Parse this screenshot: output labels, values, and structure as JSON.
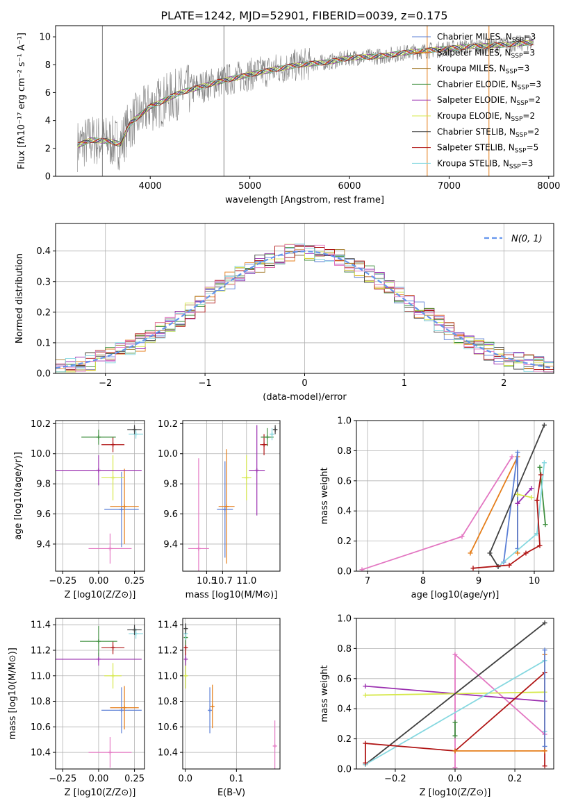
{
  "figure_title": "PLATE=1242, MJD=52901, FIBERID=0039, z=0.175",
  "colors": {
    "chabrier_miles": "#5b7fd6",
    "salpeter_miles": "#e57e1a",
    "kroupa_miles": "#a37a2a",
    "chabrier_elodie": "#3f8f3f",
    "salpeter_elodie": "#9b30b0",
    "kroupa_elodie": "#d6e84a",
    "chabrier_stelib": "#404040",
    "salpeter_stelib": "#b01515",
    "kroupa_stelib": "#86d8e0",
    "pink": "#e377c2",
    "data": "#7f7f7f"
  },
  "chart_data": [
    {
      "id": "spectrum",
      "type": "line",
      "xlabel": "wavelength [Angstrom, rest frame]",
      "ylabel": "Flux [fλ10⁻¹⁷ erg cm⁻² s⁻¹ A⁻¹]",
      "xlim": [
        3050,
        8050
      ],
      "ylim": [
        0,
        10.8
      ],
      "xticks": [
        4000,
        5000,
        6000,
        7000,
        8000
      ],
      "yticks": [
        0,
        2,
        4,
        6,
        8,
        10
      ],
      "legend": [
        {
          "label": "Chabrier MILES, N",
          "sub": "SSP",
          "suffix": "=3",
          "color": "#5b7fd6"
        },
        {
          "label": "Salpeter MILES, N",
          "sub": "SSP",
          "suffix": "=3",
          "color": "#e57e1a"
        },
        {
          "label": "Kroupa MILES, N",
          "sub": "SSP",
          "suffix": "=3",
          "color": "#a37a2a"
        },
        {
          "label": "Chabrier ELODIE, N",
          "sub": "SSP",
          "suffix": "=3",
          "color": "#3f8f3f"
        },
        {
          "label": "Salpeter ELODIE, N",
          "sub": "SSP",
          "suffix": "=2",
          "color": "#9b30b0"
        },
        {
          "label": "Kroupa ELODIE, N",
          "sub": "SSP",
          "suffix": "=2",
          "color": "#d6e84a"
        },
        {
          "label": "Chabrier STELIB, N",
          "sub": "SSP",
          "suffix": "=2",
          "color": "#404040"
        },
        {
          "label": "Salpeter STELIB, N",
          "sub": "SSP",
          "suffix": "=5",
          "color": "#b01515"
        },
        {
          "label": "Kroupa STELIB, N",
          "sub": "SSP",
          "suffix": "=3",
          "color": "#86d8e0"
        }
      ],
      "model_curve": {
        "x": [
          3270,
          3400,
          3600,
          3700,
          3800,
          3900,
          4000,
          4100,
          4300,
          4500,
          4700,
          5000,
          5200,
          5500,
          5800,
          6000,
          6300,
          6600,
          6900,
          7200,
          7500,
          7850
        ],
        "y": [
          2.2,
          2.6,
          2.5,
          2.3,
          3.8,
          4.4,
          5.0,
          5.3,
          6.0,
          6.4,
          6.8,
          7.3,
          7.6,
          8.0,
          8.2,
          8.5,
          8.6,
          8.9,
          9.1,
          9.3,
          9.4,
          9.6
        ]
      },
      "spikes": [
        {
          "x": 3520,
          "color": "#7f7f7f"
        },
        {
          "x": 4740,
          "color": "#7f7f7f"
        },
        {
          "x": 6780,
          "color": "#e57e1a"
        },
        {
          "x": 7400,
          "color": "#e57e1a"
        }
      ]
    },
    {
      "id": "residual-histogram",
      "type": "histogram",
      "xlabel": "(data-model)/error",
      "ylabel": "Normed distribution",
      "xlim": [
        -2.5,
        2.5
      ],
      "ylim": [
        0,
        0.49
      ],
      "xticks": [
        -2,
        -1,
        0,
        1,
        2
      ],
      "yticks": [
        0.0,
        0.1,
        0.2,
        0.3,
        0.4
      ],
      "bin_width": 0.1,
      "gaussian_label": "N(0, 1)"
    },
    {
      "id": "age-vs-Z",
      "type": "scatter",
      "xlabel": "Z [log10(Z/Z⊙)]",
      "ylabel": "age [log10(age/yr)]",
      "xlim": [
        -0.3,
        0.32
      ],
      "ylim": [
        9.22,
        10.22
      ],
      "xticks": [
        -0.25,
        0.0,
        0.25
      ],
      "yticks": [
        9.4,
        9.6,
        9.8,
        10.0,
        10.2
      ],
      "points": [
        {
          "x": 0.08,
          "y": 9.37,
          "xerr": 0.15,
          "yerr": 0.1,
          "color": "#e377c2"
        },
        {
          "x": 0.16,
          "y": 9.63,
          "xerr": 0.12,
          "yerr": 0.25,
          "color": "#5b7fd6"
        },
        {
          "x": 0.18,
          "y": 9.65,
          "xerr": 0.1,
          "yerr": 0.25,
          "color": "#e57e1a"
        },
        {
          "x": 0.1,
          "y": 9.84,
          "xerr": 0.08,
          "yerr": 0.15,
          "color": "#d6e84a"
        },
        {
          "x": 0.0,
          "y": 9.89,
          "xerr": 0.3,
          "yerr": 0.1,
          "color": "#9b30b0"
        },
        {
          "x": 0.1,
          "y": 10.06,
          "xerr": 0.08,
          "yerr": 0.05,
          "color": "#b01515"
        },
        {
          "x": 0.0,
          "y": 10.11,
          "xerr": 0.12,
          "yerr": 0.05,
          "color": "#3f8f3f"
        },
        {
          "x": 0.26,
          "y": 10.13,
          "xerr": 0.05,
          "yerr": 0.03,
          "color": "#86d8e0"
        },
        {
          "x": 0.25,
          "y": 10.16,
          "xerr": 0.05,
          "yerr": 0.03,
          "color": "#404040"
        }
      ]
    },
    {
      "id": "age-vs-mass",
      "type": "scatter",
      "xlabel": "mass [log10(M/M⊙)]",
      "ylabel": "",
      "xlim": [
        10.2,
        11.42
      ],
      "ylim": [
        9.22,
        10.22
      ],
      "xticks": [
        10.5,
        10.7,
        11.0
      ],
      "xticklabels": [
        "10.5",
        "10.7",
        "11.0"
      ],
      "yticks": [
        9.4,
        9.6,
        9.8,
        10.0,
        10.2
      ],
      "points": [
        {
          "x": 10.4,
          "y": 9.37,
          "xerr": 0.13,
          "yerr": 0.6,
          "color": "#e377c2"
        },
        {
          "x": 10.73,
          "y": 9.63,
          "xerr": 0.1,
          "yerr": 0.32,
          "color": "#5b7fd6"
        },
        {
          "x": 10.75,
          "y": 9.65,
          "xerr": 0.1,
          "yerr": 0.38,
          "color": "#e57e1a"
        },
        {
          "x": 11.0,
          "y": 9.84,
          "xerr": 0.06,
          "yerr": 0.15,
          "color": "#d6e84a"
        },
        {
          "x": 11.13,
          "y": 9.89,
          "xerr": 0.1,
          "yerr": 0.3,
          "color": "#9b30b0"
        },
        {
          "x": 11.22,
          "y": 10.06,
          "xerr": 0.05,
          "yerr": 0.07,
          "color": "#b01515"
        },
        {
          "x": 11.26,
          "y": 10.11,
          "xerr": 0.08,
          "yerr": 0.06,
          "color": "#3f8f3f"
        },
        {
          "x": 11.32,
          "y": 10.13,
          "xerr": 0.03,
          "yerr": 0.04,
          "color": "#86d8e0"
        },
        {
          "x": 11.36,
          "y": 10.16,
          "xerr": 0.03,
          "yerr": 0.03,
          "color": "#404040"
        }
      ]
    },
    {
      "id": "massweight-vs-age",
      "type": "line",
      "xlabel": "age [log10(age/yr)]",
      "ylabel": "mass weight",
      "xlim": [
        6.8,
        10.35
      ],
      "ylim": [
        0,
        1.0
      ],
      "xticks": [
        7,
        8,
        9,
        10
      ],
      "yticks": [
        0.0,
        0.2,
        0.4,
        0.6,
        0.8,
        1.0
      ],
      "series": [
        {
          "color": "#e377c2",
          "x": [
            6.9,
            8.7,
            9.6
          ],
          "y": [
            0.01,
            0.23,
            0.76
          ]
        },
        {
          "color": "#e57e1a",
          "x": [
            8.85,
            9.7,
            9.7
          ],
          "y": [
            0.12,
            0.76,
            0.12
          ]
        },
        {
          "color": "#5b7fd6",
          "x": [
            9.45,
            9.7,
            9.7
          ],
          "y": [
            0.06,
            0.79,
            0.15
          ]
        },
        {
          "color": "#9b30b0",
          "x": [
            9.7,
            9.95
          ],
          "y": [
            0.45,
            0.55
          ]
        },
        {
          "color": "#d6e84a",
          "x": [
            9.7,
            9.95
          ],
          "y": [
            0.51,
            0.49
          ]
        },
        {
          "color": "#3f8f3f",
          "x": [
            10.1,
            10.2
          ],
          "y": [
            0.69,
            0.31
          ]
        },
        {
          "color": "#86d8e0",
          "x": [
            9.35,
            10.05,
            10.18
          ],
          "y": [
            0.03,
            0.25,
            0.72
          ]
        },
        {
          "color": "#404040",
          "x": [
            9.35,
            9.2,
            10.18
          ],
          "y": [
            0.03,
            0.12,
            0.97
          ]
        },
        {
          "color": "#b01515",
          "x": [
            8.9,
            9.55,
            9.85,
            10.1,
            10.05,
            10.12
          ],
          "y": [
            0.02,
            0.04,
            0.12,
            0.17,
            0.47,
            0.64
          ]
        }
      ]
    },
    {
      "id": "mass-vs-Z",
      "type": "scatter",
      "xlabel": "Z [log10(Z/Z⊙)]",
      "ylabel": "mass [log10(M/M⊙)]",
      "xlim": [
        -0.3,
        0.32
      ],
      "ylim": [
        10.27,
        11.45
      ],
      "xticks": [
        -0.25,
        0.0,
        0.25
      ],
      "yticks": [
        10.4,
        10.6,
        10.8,
        11.0,
        11.2,
        11.4
      ],
      "points": [
        {
          "x": 0.08,
          "y": 10.4,
          "xerr": 0.15,
          "yerr": 0.12,
          "color": "#e377c2"
        },
        {
          "x": 0.16,
          "y": 10.73,
          "xerr": 0.14,
          "yerr": 0.18,
          "color": "#5b7fd6"
        },
        {
          "x": 0.18,
          "y": 10.75,
          "xerr": 0.1,
          "yerr": 0.17,
          "color": "#e57e1a"
        },
        {
          "x": 0.1,
          "y": 11.0,
          "xerr": 0.06,
          "yerr": 0.1,
          "color": "#d6e84a"
        },
        {
          "x": 0.0,
          "y": 11.13,
          "xerr": 0.3,
          "yerr": 0.05,
          "color": "#9b30b0"
        },
        {
          "x": 0.1,
          "y": 11.22,
          "xerr": 0.08,
          "yerr": 0.05,
          "color": "#b01515"
        },
        {
          "x": 0.0,
          "y": 11.27,
          "xerr": 0.13,
          "yerr": 0.12,
          "color": "#3f8f3f"
        },
        {
          "x": 0.26,
          "y": 11.33,
          "xerr": 0.05,
          "yerr": 0.04,
          "color": "#86d8e0"
        },
        {
          "x": 0.25,
          "y": 11.36,
          "xerr": 0.05,
          "yerr": 0.04,
          "color": "#404040"
        }
      ]
    },
    {
      "id": "mass-vs-ebv",
      "type": "scatter",
      "xlabel": "E(B-V)",
      "ylabel": "",
      "xlim": [
        -0.005,
        0.185
      ],
      "ylim": [
        10.27,
        11.45
      ],
      "xticks": [
        0.0,
        0.1
      ],
      "yticks": [
        10.4,
        10.6,
        10.8,
        11.0,
        11.2,
        11.4
      ],
      "points": [
        {
          "x": 0.175,
          "y": 10.45,
          "xerr": 0.0,
          "yerr": 0.2,
          "color": "#e377c2"
        },
        {
          "x": 0.048,
          "y": 10.73,
          "xerr": 0.0,
          "yerr": 0.18,
          "color": "#5b7fd6"
        },
        {
          "x": 0.053,
          "y": 10.76,
          "xerr": 0.0,
          "yerr": 0.17,
          "color": "#e57e1a"
        },
        {
          "x": 0.001,
          "y": 11.0,
          "xerr": 0.0,
          "yerr": 0.1,
          "color": "#d6e84a"
        },
        {
          "x": 0.001,
          "y": 11.13,
          "xerr": 0.0,
          "yerr": 0.05,
          "color": "#9b30b0"
        },
        {
          "x": 0.001,
          "y": 11.22,
          "xerr": 0.0,
          "yerr": 0.06,
          "color": "#b01515"
        },
        {
          "x": 0.001,
          "y": 11.3,
          "xerr": 0.0,
          "yerr": 0.06,
          "color": "#3f8f3f"
        },
        {
          "x": 0.001,
          "y": 11.33,
          "xerr": 0.0,
          "yerr": 0.05,
          "color": "#86d8e0"
        },
        {
          "x": 0.001,
          "y": 11.37,
          "xerr": 0.0,
          "yerr": 0.04,
          "color": "#404040"
        }
      ]
    },
    {
      "id": "massweight-vs-Z",
      "type": "line",
      "xlabel": "Z [log10(Z/Z⊙)]",
      "ylabel": "mass weight",
      "xlim": [
        -0.33,
        0.33
      ],
      "ylim": [
        0,
        1.0
      ],
      "xticks": [
        -0.2,
        0.0,
        0.2
      ],
      "yticks": [
        0.0,
        0.2,
        0.4,
        0.6,
        0.8,
        1.0
      ],
      "series": [
        {
          "color": "#e377c2",
          "x": [
            0.0,
            0.0,
            0.3
          ],
          "y": [
            0.01,
            0.76,
            0.23
          ]
        },
        {
          "color": "#9b30b0",
          "x": [
            -0.3,
            0.3
          ],
          "y": [
            0.55,
            0.45
          ]
        },
        {
          "color": "#d6e84a",
          "x": [
            -0.3,
            0.3
          ],
          "y": [
            0.49,
            0.51
          ]
        },
        {
          "color": "#404040",
          "x": [
            -0.3,
            0.3
          ],
          "y": [
            0.03,
            0.97
          ]
        },
        {
          "color": "#86d8e0",
          "x": [
            -0.3,
            0.3,
            0.3
          ],
          "y": [
            0.03,
            0.72,
            0.25
          ]
        },
        {
          "color": "#b01515",
          "x": [
            -0.3,
            -0.3,
            0.0,
            0.3,
            0.3,
            0.3
          ],
          "y": [
            0.04,
            0.17,
            0.12,
            0.64,
            0.12,
            0.02
          ]
        },
        {
          "color": "#3f8f3f",
          "x": [
            0.0,
            0.0
          ],
          "y": [
            0.31,
            0.22
          ]
        },
        {
          "color": "#e57e1a",
          "x": [
            0.0,
            0.3,
            0.3
          ],
          "y": [
            0.12,
            0.12,
            0.76
          ]
        },
        {
          "color": "#5b7fd6",
          "x": [
            0.3,
            0.3
          ],
          "y": [
            0.15,
            0.79
          ]
        }
      ]
    }
  ]
}
